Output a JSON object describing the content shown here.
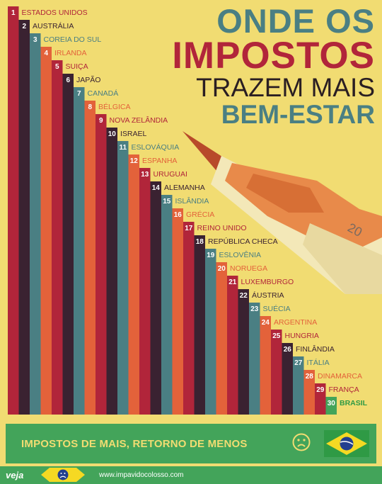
{
  "title": {
    "line1": "ONDE OS",
    "line2": "IMPOSTOS",
    "line3": "TRAZEM MAIS",
    "line4": "BEM-ESTAR"
  },
  "chart_data": {
    "type": "bar",
    "orientation": "staircase",
    "categories": [
      "ESTADOS UNIDOS",
      "AUSTRÁLIA",
      "COREIA DO SUL",
      "IRLANDA",
      "SUIÇA",
      "JAPÃO",
      "CANADÁ",
      "BÉLGICA",
      "NOVA ZELÂNDIA",
      "ISRAEL",
      "ESLOVÁQUIA",
      "ESPANHA",
      "URUGUAI",
      "ALEMANHA",
      "ISLÂNDIA",
      "GRÉCIA",
      "REINO UNIDO",
      "REPÚBLICA CHECA",
      "ESLOVÊNIA",
      "NORUEGA",
      "LUXEMBURGO",
      "ÁUSTRIA",
      "SUÉCIA",
      "ARGENTINA",
      "HUNGRIA",
      "FINLÂNDIA",
      "ITÁLIA",
      "DINAMARCA",
      "FRANÇA",
      "BRASIL"
    ],
    "ranks": [
      1,
      2,
      3,
      4,
      5,
      6,
      7,
      8,
      9,
      10,
      11,
      12,
      13,
      14,
      15,
      16,
      17,
      18,
      19,
      20,
      21,
      22,
      23,
      24,
      25,
      26,
      27,
      28,
      29,
      30
    ],
    "palette": [
      "#b1253a",
      "#3a2231",
      "#4a7f83",
      "#e3623a"
    ]
  },
  "banner": {
    "text": "IMPOSTOS DE MAIS, RETORNO DE MENOS",
    "sad_icon": "sad-face-icon",
    "flag_icon": "brazil-flag-icon"
  },
  "banknote": {
    "value_text": "20"
  },
  "footer": {
    "logo": "veja",
    "url": "www.impavidocolosso.com",
    "badge_icon": "sad-face-icon"
  }
}
